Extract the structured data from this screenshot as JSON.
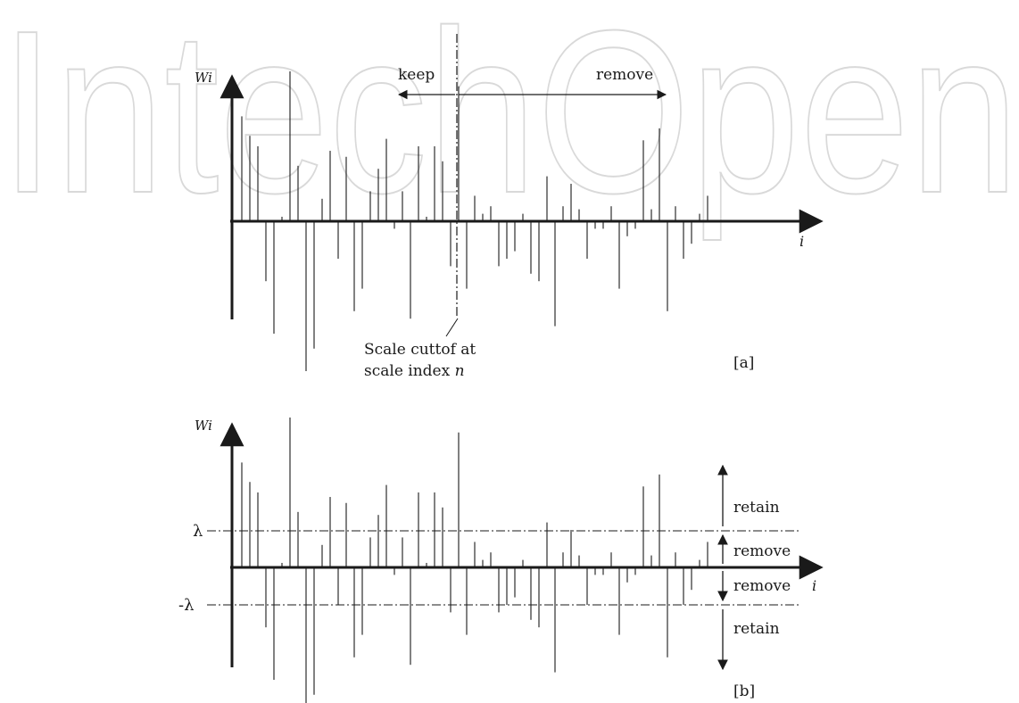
{
  "watermark": {
    "text": "IntechOpen"
  },
  "panel_a": {
    "y_axis_label": "Wi",
    "x_axis_label": "i",
    "keep_label": "keep",
    "remove_label": "remove",
    "cutoff_note_line1": "Scale cuttof at",
    "cutoff_note_line2": "scale index",
    "cutoff_note_symbol": "n",
    "panel_tag": "[a]"
  },
  "panel_b": {
    "y_axis_label": "Wi",
    "x_axis_label": "i",
    "threshold_pos_label": "λ",
    "threshold_neg_label": "-λ",
    "region_labels": [
      "retain",
      "remove",
      "remove",
      "retain"
    ],
    "panel_tag": "[b]"
  },
  "coefficients": [
    0.7,
    0.57,
    0.5,
    -0.4,
    -0.75,
    0.03,
    1.0,
    0.37,
    -1.0,
    -0.85,
    0.15,
    0.47,
    -0.25,
    0.43,
    -0.6,
    -0.45,
    0.2,
    0.35,
    0.55,
    -0.05,
    0.2,
    -0.65,
    0.5,
    0.03,
    0.5,
    0.4,
    -0.3,
    0.9,
    -0.45,
    0.17,
    0.05,
    0.1,
    -0.3,
    -0.25,
    -0.2,
    0.05,
    -0.35,
    -0.4,
    0.3,
    -0.7,
    0.1,
    0.25,
    0.08,
    -0.25,
    -0.05,
    -0.05,
    0.1,
    -0.45,
    -0.1,
    -0.05,
    0.54,
    0.08,
    0.62,
    -0.6,
    0.1,
    -0.25,
    -0.15,
    0.05,
    0.17
  ]
}
